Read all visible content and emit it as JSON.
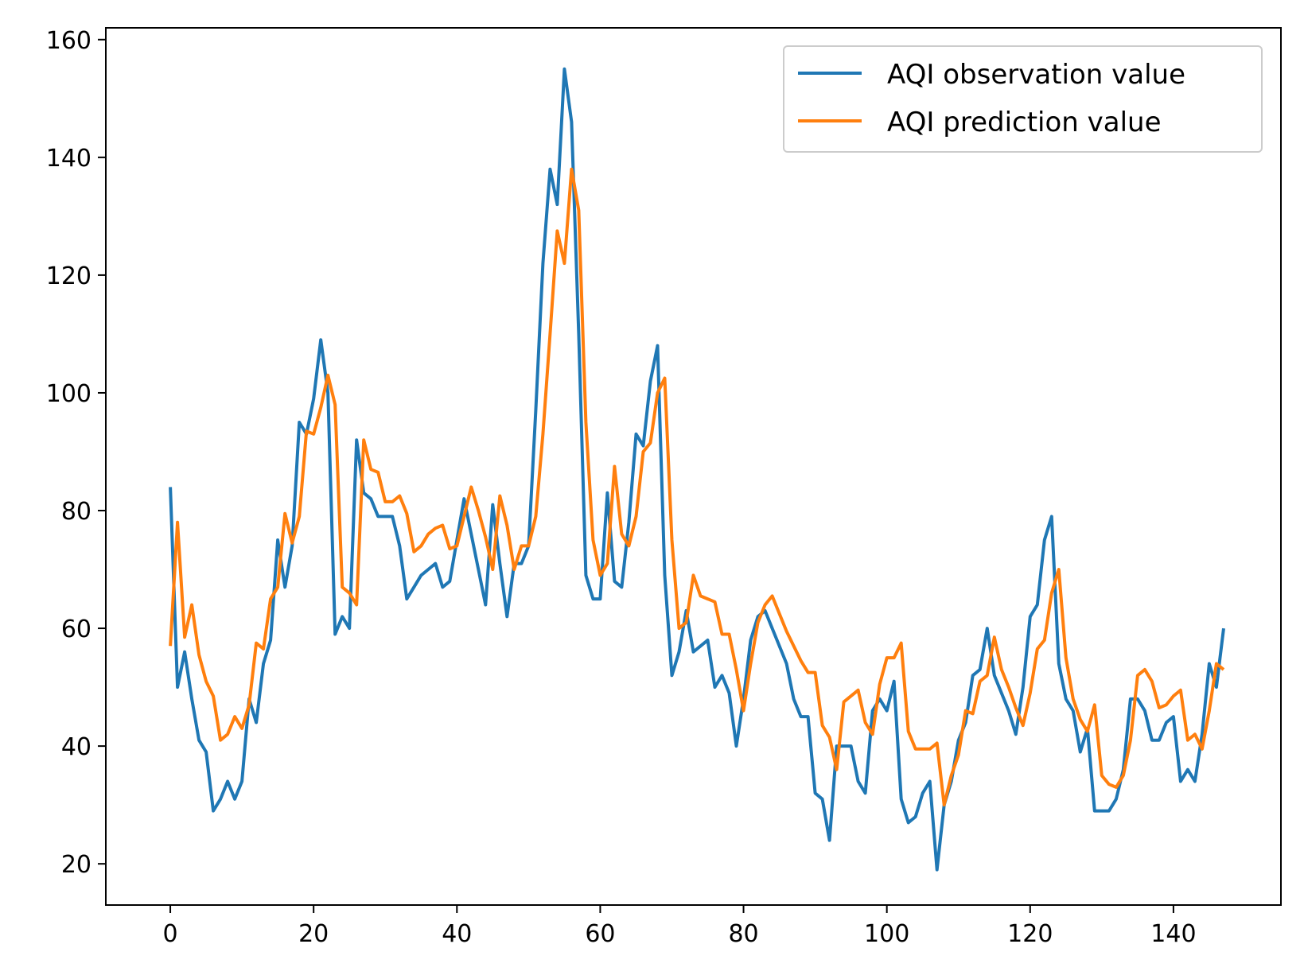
{
  "chart_data": {
    "type": "line",
    "title": "",
    "xlabel": "",
    "ylabel": "",
    "xlim": [
      -9,
      155
    ],
    "ylim": [
      13,
      162
    ],
    "grid": false,
    "legend_position": "top-right",
    "x_ticks": [
      0,
      20,
      40,
      60,
      80,
      100,
      120,
      140
    ],
    "y_ticks": [
      20,
      40,
      60,
      80,
      100,
      120,
      140,
      160
    ],
    "series": [
      {
        "name": "AQI observation value",
        "color": "#1f77b4",
        "values": [
          84,
          50,
          56,
          48,
          41,
          39,
          29,
          31,
          34,
          31,
          34,
          48,
          44,
          54,
          58,
          75,
          67,
          74,
          95,
          93,
          99,
          109,
          100,
          59,
          62,
          60,
          92,
          83,
          82,
          79,
          79,
          79,
          74,
          65,
          67,
          69,
          70,
          71,
          67,
          68,
          75,
          82,
          76,
          70,
          64,
          81,
          71,
          62,
          71,
          71,
          74,
          97,
          122,
          138,
          132,
          155,
          146,
          110,
          69,
          65,
          65,
          83,
          68,
          67,
          78,
          93,
          91,
          102,
          108,
          69,
          52,
          56,
          63,
          56,
          57,
          58,
          50,
          52,
          49,
          40,
          48,
          58,
          62,
          63,
          60,
          57,
          54,
          48,
          45,
          45,
          32,
          31,
          24,
          40,
          40,
          40,
          34,
          32,
          46,
          48,
          46,
          51,
          31,
          27,
          28,
          32,
          34,
          19,
          30,
          34,
          41,
          44,
          52,
          53,
          60,
          52,
          49,
          46,
          42,
          50,
          62,
          64,
          75,
          79,
          54,
          48,
          46,
          39,
          43,
          29,
          29,
          29,
          31,
          36,
          48,
          48,
          46,
          41,
          41,
          44,
          45,
          34,
          36,
          34,
          42,
          54,
          50,
          60
        ]
      },
      {
        "name": "AQI prediction value",
        "color": "#ff7f0e",
        "values": [
          57,
          78,
          58.5,
          64,
          55.5,
          51,
          48.5,
          41,
          42,
          45,
          43,
          47,
          57.5,
          56.5,
          65,
          67,
          79.5,
          74.5,
          79,
          93.5,
          93,
          97.5,
          103,
          98,
          67,
          66,
          64,
          92,
          87,
          86.5,
          81.5,
          81.5,
          82.5,
          79.5,
          73,
          74,
          76,
          77,
          77.5,
          73.5,
          74,
          79,
          84,
          80,
          75.5,
          70,
          82.5,
          77.5,
          70,
          74,
          74,
          79,
          93,
          110,
          127.5,
          122,
          138,
          131,
          95,
          75,
          69,
          71,
          87.5,
          76,
          74,
          79,
          90,
          91.5,
          100,
          102.5,
          75,
          60,
          61,
          69,
          65.5,
          65,
          64.5,
          59,
          59,
          53,
          46,
          54,
          61,
          64,
          65.5,
          62.5,
          59.5,
          57,
          54.5,
          52.5,
          52.5,
          43.5,
          41.5,
          36,
          47.5,
          48.5,
          49.5,
          44,
          42,
          50.5,
          55,
          55,
          57.5,
          42.5,
          39.5,
          39.5,
          39.5,
          40.5,
          30,
          35,
          38.5,
          46,
          45.5,
          51,
          52,
          58.5,
          53,
          50,
          46.5,
          43.5,
          49,
          56.5,
          58,
          66,
          70,
          55,
          48,
          44.5,
          42.5,
          47,
          35,
          33.5,
          33,
          35,
          41,
          52,
          53,
          51,
          46.5,
          47,
          48.5,
          49.5,
          41,
          42,
          39.5,
          46,
          54,
          53
        ]
      }
    ]
  }
}
